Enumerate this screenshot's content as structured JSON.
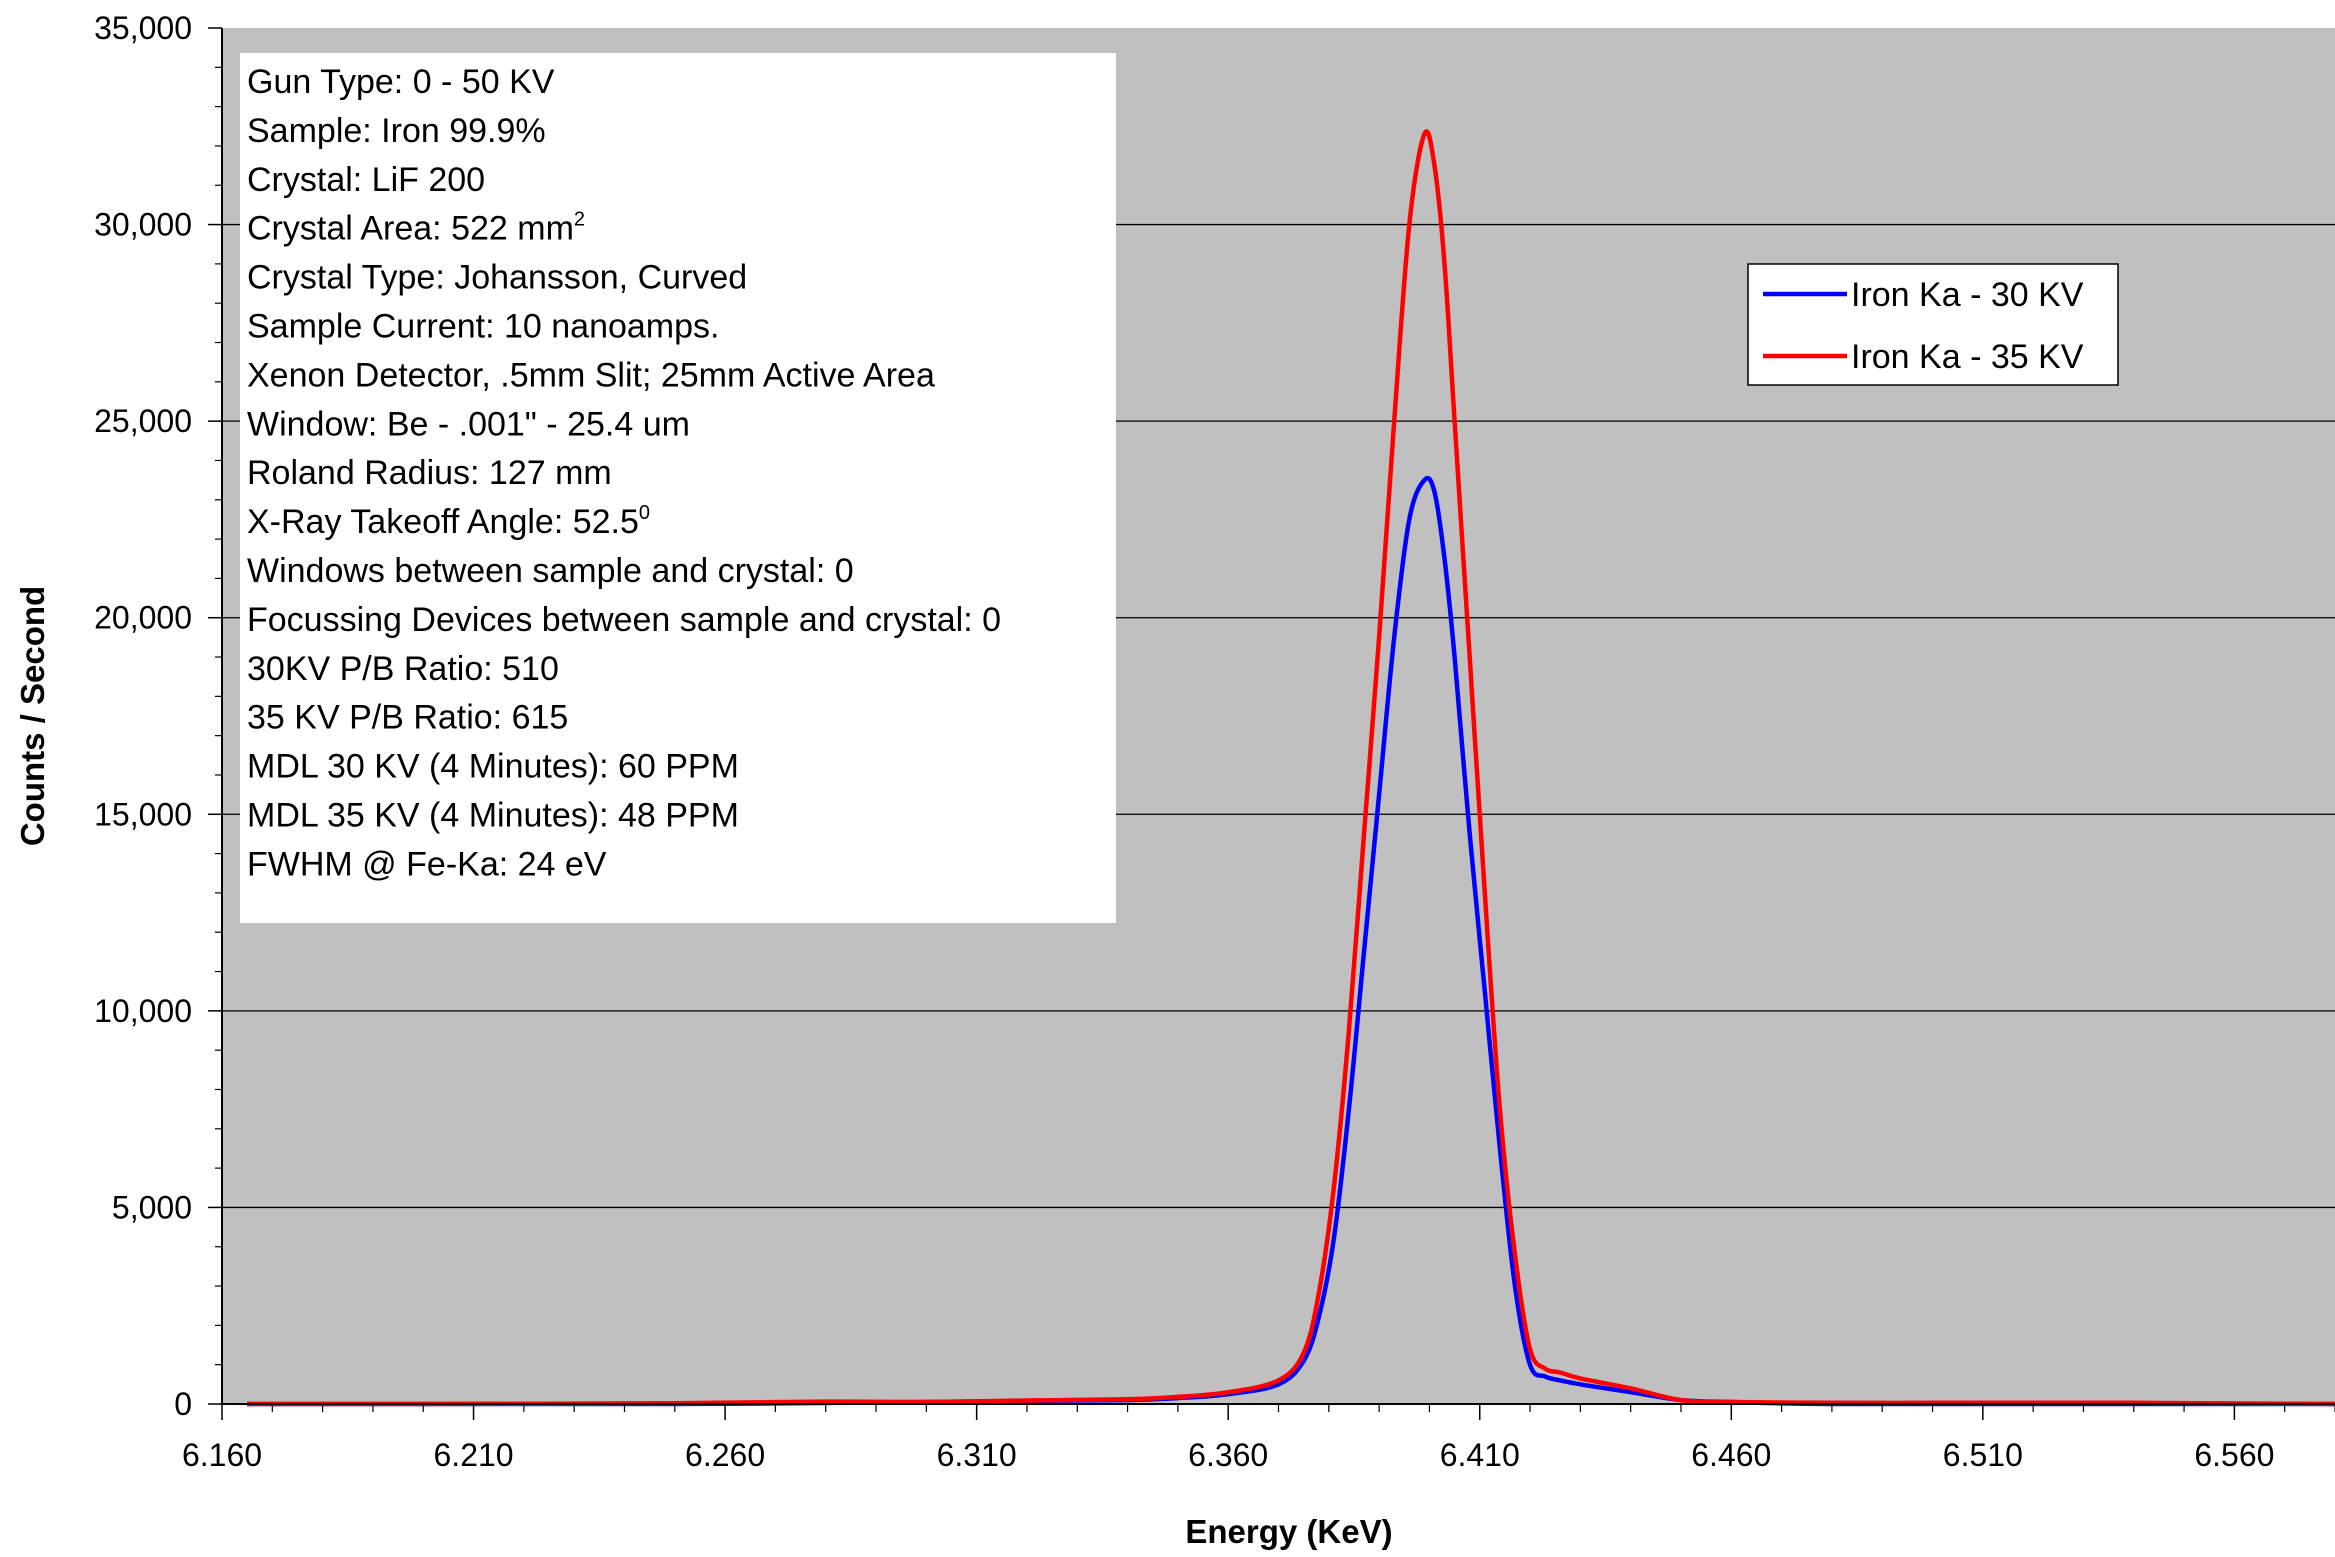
{
  "chart_data": {
    "type": "line",
    "xlabel": "Energy (KeV)",
    "ylabel": "Counts / Second",
    "xlim": [
      6.16,
      6.58
    ],
    "ylim": [
      0,
      35000
    ],
    "x_ticks": [
      "6.160",
      "6.210",
      "6.260",
      "6.310",
      "6.360",
      "6.410",
      "6.460",
      "6.510",
      "6.560"
    ],
    "y_ticks": [
      "0",
      "5,000",
      "10,000",
      "15,000",
      "20,000",
      "25,000",
      "30,000",
      "35,000"
    ],
    "grid": "horizontal",
    "legend_position": "top-right",
    "colors": {
      "plot_background": "#c0c0c0",
      "gridline": "#000000"
    },
    "series": [
      {
        "name": "Iron Ka - 30 KV",
        "color": "#0000ff",
        "x": [
          6.165,
          6.2,
          6.25,
          6.3,
          6.32,
          6.34,
          6.35,
          6.36,
          6.37,
          6.375,
          6.378,
          6.381,
          6.384,
          6.387,
          6.39,
          6.393,
          6.396,
          6.399,
          6.401,
          6.403,
          6.405,
          6.408,
          6.411,
          6.414,
          6.417,
          6.42,
          6.423,
          6.426,
          6.43,
          6.44,
          6.45,
          6.46,
          6.48,
          6.52,
          6.58
        ],
        "values": [
          0,
          0,
          0,
          50,
          80,
          100,
          150,
          250,
          500,
          1100,
          2200,
          4200,
          7500,
          11500,
          15500,
          19500,
          22500,
          23500,
          23200,
          21500,
          19000,
          14500,
          10500,
          6500,
          3000,
          1000,
          700,
          600,
          500,
          300,
          100,
          50,
          0,
          0,
          0
        ]
      },
      {
        "name": "Iron Ka - 35 KV",
        "color": "#ff0000",
        "x": [
          6.165,
          6.2,
          6.25,
          6.28,
          6.3,
          6.32,
          6.34,
          6.35,
          6.36,
          6.37,
          6.375,
          6.378,
          6.381,
          6.384,
          6.387,
          6.39,
          6.393,
          6.396,
          6.399,
          6.401,
          6.403,
          6.405,
          6.408,
          6.411,
          6.414,
          6.417,
          6.42,
          6.423,
          6.426,
          6.43,
          6.44,
          6.45,
          6.46,
          6.48,
          6.5,
          6.52,
          6.54,
          6.58
        ],
        "values": [
          0,
          0,
          20,
          60,
          50,
          90,
          120,
          180,
          300,
          600,
          1300,
          2800,
          5500,
          9500,
          14500,
          19500,
          25000,
          30000,
          32300,
          31500,
          29000,
          25000,
          19000,
          13000,
          7500,
          3800,
          1400,
          900,
          800,
          650,
          400,
          100,
          50,
          30,
          30,
          30,
          30,
          0
        ]
      }
    ]
  },
  "info_box": {
    "lines": [
      {
        "text": "Gun Type: 0 - 50 KV"
      },
      {
        "text": "Sample: Iron 99.9%"
      },
      {
        "text": "Crystal: LiF 200"
      },
      {
        "text": "Crystal Area: 522 mm",
        "sup": "2"
      },
      {
        "text": "Crystal Type: Johansson, Curved"
      },
      {
        "text": "Sample Current: 10 nanoamps."
      },
      {
        "text": "Xenon Detector, .5mm Slit; 25mm Active Area"
      },
      {
        "text": "Window: Be - .001\" - 25.4 um"
      },
      {
        "text": "Roland Radius: 127 mm"
      },
      {
        "text": "X-Ray Takeoff Angle: 52.5",
        "sup": "0"
      },
      {
        "text": "Windows between sample and crystal: 0"
      },
      {
        "text": "Focussing Devices between sample and crystal: 0"
      },
      {
        "text": "30KV P/B Ratio: 510"
      },
      {
        "text": "35 KV P/B Ratio: 615"
      },
      {
        "text": "MDL 30 KV (4 Minutes): 60 PPM"
      },
      {
        "text": "MDL 35 KV (4 Minutes): 48 PPM"
      },
      {
        "text": "FWHM @ Fe-Ka: 24 eV"
      }
    ]
  }
}
